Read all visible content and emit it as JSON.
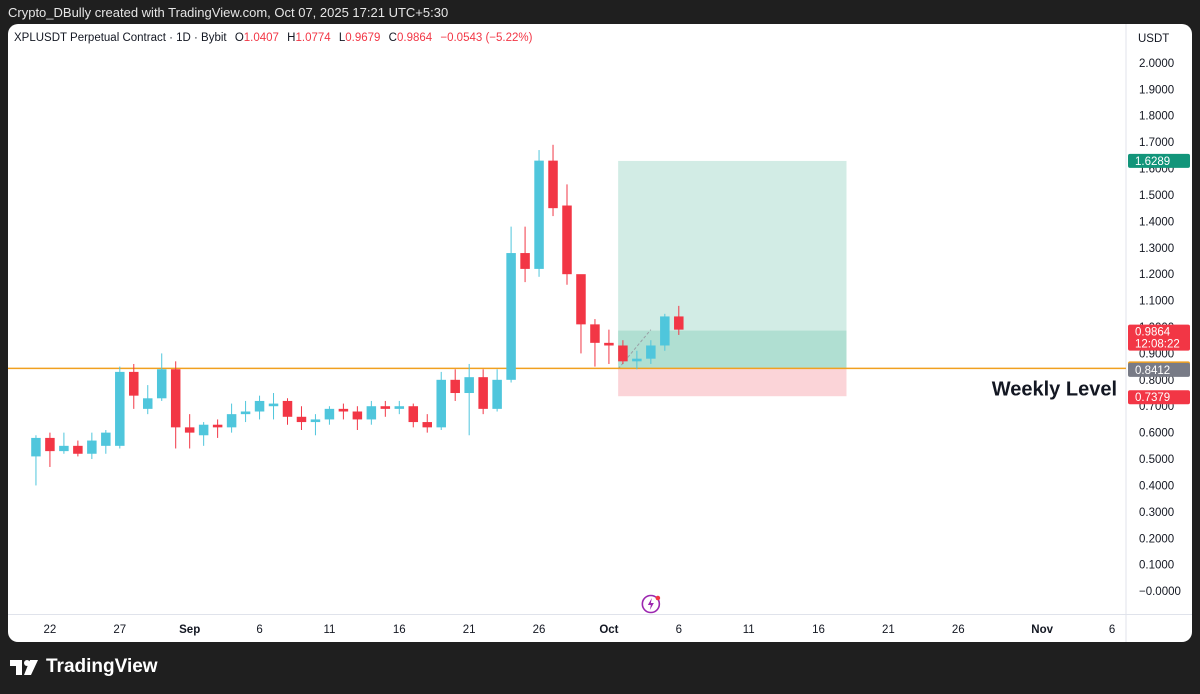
{
  "header": {
    "attribution": "Crypto_DBully created with TradingView.com, Oct 07, 2025 17:21 UTC+5:30"
  },
  "legend": {
    "symbol": "XPLUSDT Perpetual Contract · 1D · Bybit",
    "o_label": "O",
    "o_value": "1.0407",
    "h_label": "H",
    "h_value": "1.0774",
    "l_label": "L",
    "l_value": "0.9679",
    "c_label": "C",
    "c_value": "0.9864",
    "change": "−0.0543 (−5.22%)"
  },
  "footer": {
    "brand": "TradingView"
  },
  "colors": {
    "up": "#4fc6dc",
    "down": "#f23645",
    "level": "#f0a020",
    "target_zone": "#cdeae2",
    "stop_zone": "#fbd4d8",
    "tp_label": "#12957a",
    "entry_label": "#787b86",
    "background": "#ffffff"
  },
  "chart_data": {
    "type": "candlestick",
    "currency_label": "USDT",
    "ylim": [
      -0.03,
      2.03
    ],
    "y_ticks": [
      "2.0000",
      "1.9000",
      "1.8000",
      "1.7000",
      "1.6000",
      "1.5000",
      "1.4000",
      "1.3000",
      "1.2000",
      "1.1000",
      "1.0000",
      "0.9000",
      "0.8000",
      "0.7000",
      "0.6000",
      "0.5000",
      "0.4000",
      "0.3000",
      "0.2000",
      "0.1000",
      "−0.0000"
    ],
    "x_ticks": [
      {
        "label": "22",
        "date": "2025-08-22",
        "bold": false
      },
      {
        "label": "27",
        "date": "2025-08-27",
        "bold": false
      },
      {
        "label": "Sep",
        "date": "2025-09-01",
        "bold": true
      },
      {
        "label": "6",
        "date": "2025-09-06",
        "bold": false
      },
      {
        "label": "11",
        "date": "2025-09-11",
        "bold": false
      },
      {
        "label": "16",
        "date": "2025-09-16",
        "bold": false
      },
      {
        "label": "21",
        "date": "2025-09-21",
        "bold": false
      },
      {
        "label": "26",
        "date": "2025-09-26",
        "bold": false
      },
      {
        "label": "Oct",
        "date": "2025-10-01",
        "bold": true
      },
      {
        "label": "6",
        "date": "2025-10-06",
        "bold": false
      },
      {
        "label": "11",
        "date": "2025-10-11",
        "bold": false
      },
      {
        "label": "16",
        "date": "2025-10-16",
        "bold": false
      },
      {
        "label": "21",
        "date": "2025-10-21",
        "bold": false
      },
      {
        "label": "26",
        "date": "2025-10-26",
        "bold": false
      },
      {
        "label": "Nov",
        "date": "2025-11-01",
        "bold": true
      },
      {
        "label": "6",
        "date": "2025-11-06",
        "bold": false
      }
    ],
    "x_range": [
      "2025-08-19",
      "2025-11-07"
    ],
    "candles": [
      {
        "date": "2025-08-21",
        "o": 0.51,
        "h": 0.59,
        "l": 0.4,
        "c": 0.58
      },
      {
        "date": "2025-08-22",
        "o": 0.58,
        "h": 0.6,
        "l": 0.47,
        "c": 0.53
      },
      {
        "date": "2025-08-23",
        "o": 0.53,
        "h": 0.6,
        "l": 0.52,
        "c": 0.55
      },
      {
        "date": "2025-08-24",
        "o": 0.55,
        "h": 0.57,
        "l": 0.51,
        "c": 0.52
      },
      {
        "date": "2025-08-25",
        "o": 0.52,
        "h": 0.6,
        "l": 0.5,
        "c": 0.57
      },
      {
        "date": "2025-08-26",
        "o": 0.55,
        "h": 0.61,
        "l": 0.52,
        "c": 0.6
      },
      {
        "date": "2025-08-27",
        "o": 0.55,
        "h": 0.85,
        "l": 0.54,
        "c": 0.83
      },
      {
        "date": "2025-08-28",
        "o": 0.83,
        "h": 0.86,
        "l": 0.69,
        "c": 0.74
      },
      {
        "date": "2025-08-29",
        "o": 0.69,
        "h": 0.78,
        "l": 0.67,
        "c": 0.73
      },
      {
        "date": "2025-08-30",
        "o": 0.73,
        "h": 0.9,
        "l": 0.72,
        "c": 0.84
      },
      {
        "date": "2025-08-31",
        "o": 0.84,
        "h": 0.87,
        "l": 0.54,
        "c": 0.62
      },
      {
        "date": "2025-09-01",
        "o": 0.62,
        "h": 0.67,
        "l": 0.54,
        "c": 0.6
      },
      {
        "date": "2025-09-02",
        "o": 0.59,
        "h": 0.64,
        "l": 0.55,
        "c": 0.63
      },
      {
        "date": "2025-09-03",
        "o": 0.63,
        "h": 0.65,
        "l": 0.58,
        "c": 0.62
      },
      {
        "date": "2025-09-04",
        "o": 0.62,
        "h": 0.71,
        "l": 0.6,
        "c": 0.67
      },
      {
        "date": "2025-09-05",
        "o": 0.67,
        "h": 0.72,
        "l": 0.64,
        "c": 0.68
      },
      {
        "date": "2025-09-06",
        "o": 0.68,
        "h": 0.74,
        "l": 0.65,
        "c": 0.72
      },
      {
        "date": "2025-09-07",
        "o": 0.7,
        "h": 0.75,
        "l": 0.65,
        "c": 0.71
      },
      {
        "date": "2025-09-08",
        "o": 0.72,
        "h": 0.73,
        "l": 0.63,
        "c": 0.66
      },
      {
        "date": "2025-09-09",
        "o": 0.66,
        "h": 0.7,
        "l": 0.61,
        "c": 0.64
      },
      {
        "date": "2025-09-10",
        "o": 0.64,
        "h": 0.67,
        "l": 0.59,
        "c": 0.65
      },
      {
        "date": "2025-09-11",
        "o": 0.65,
        "h": 0.7,
        "l": 0.63,
        "c": 0.69
      },
      {
        "date": "2025-09-12",
        "o": 0.69,
        "h": 0.71,
        "l": 0.65,
        "c": 0.68
      },
      {
        "date": "2025-09-13",
        "o": 0.68,
        "h": 0.7,
        "l": 0.61,
        "c": 0.65
      },
      {
        "date": "2025-09-14",
        "o": 0.65,
        "h": 0.72,
        "l": 0.63,
        "c": 0.7
      },
      {
        "date": "2025-09-15",
        "o": 0.7,
        "h": 0.72,
        "l": 0.66,
        "c": 0.69
      },
      {
        "date": "2025-09-16",
        "o": 0.69,
        "h": 0.72,
        "l": 0.67,
        "c": 0.7
      },
      {
        "date": "2025-09-17",
        "o": 0.7,
        "h": 0.71,
        "l": 0.62,
        "c": 0.64
      },
      {
        "date": "2025-09-18",
        "o": 0.64,
        "h": 0.67,
        "l": 0.6,
        "c": 0.62
      },
      {
        "date": "2025-09-19",
        "o": 0.62,
        "h": 0.83,
        "l": 0.61,
        "c": 0.8
      },
      {
        "date": "2025-09-20",
        "o": 0.8,
        "h": 0.84,
        "l": 0.72,
        "c": 0.75
      },
      {
        "date": "2025-09-21",
        "o": 0.75,
        "h": 0.86,
        "l": 0.59,
        "c": 0.81
      },
      {
        "date": "2025-09-22",
        "o": 0.81,
        "h": 0.84,
        "l": 0.67,
        "c": 0.69
      },
      {
        "date": "2025-09-23",
        "o": 0.69,
        "h": 0.84,
        "l": 0.68,
        "c": 0.8
      },
      {
        "date": "2025-09-24",
        "o": 0.8,
        "h": 1.38,
        "l": 0.79,
        "c": 1.28
      },
      {
        "date": "2025-09-25",
        "o": 1.28,
        "h": 1.38,
        "l": 1.17,
        "c": 1.22
      },
      {
        "date": "2025-09-26",
        "o": 1.22,
        "h": 1.67,
        "l": 1.19,
        "c": 1.63
      },
      {
        "date": "2025-09-27",
        "o": 1.63,
        "h": 1.69,
        "l": 1.42,
        "c": 1.45
      },
      {
        "date": "2025-09-28",
        "o": 1.46,
        "h": 1.54,
        "l": 1.16,
        "c": 1.2
      },
      {
        "date": "2025-09-29",
        "o": 1.2,
        "h": 1.18,
        "l": 0.9,
        "c": 1.01
      },
      {
        "date": "2025-09-30",
        "o": 1.01,
        "h": 1.03,
        "l": 0.85,
        "c": 0.94
      },
      {
        "date": "2025-10-01",
        "o": 0.94,
        "h": 0.99,
        "l": 0.86,
        "c": 0.93
      },
      {
        "date": "2025-10-02",
        "o": 0.93,
        "h": 0.95,
        "l": 0.86,
        "c": 0.87
      },
      {
        "date": "2025-10-03",
        "o": 0.87,
        "h": 0.91,
        "l": 0.84,
        "c": 0.88
      },
      {
        "date": "2025-10-04",
        "o": 0.88,
        "h": 0.95,
        "l": 0.86,
        "c": 0.93
      },
      {
        "date": "2025-10-05",
        "o": 0.93,
        "h": 1.05,
        "l": 0.91,
        "c": 1.04
      },
      {
        "date": "2025-10-06",
        "o": 1.04,
        "h": 1.08,
        "l": 0.97,
        "c": 0.99
      }
    ],
    "horizontal_levels": [
      {
        "name": "Weekly Level",
        "value": 0.8431,
        "label": "0.8431"
      }
    ],
    "annotations": [
      {
        "text": "Weekly Level"
      }
    ],
    "position_tool": {
      "start_date": "2025-10-02",
      "end_date": "2025-10-18",
      "take_profit": 1.6289,
      "entry": 0.8412,
      "stop": 0.7379,
      "current": 0.9864
    },
    "price_labels": [
      {
        "key": "tp",
        "value": 1.6289,
        "text": "1.6289"
      },
      {
        "key": "last",
        "value": 0.9864,
        "text": "0.9864",
        "sub": "12:08:22"
      },
      {
        "key": "level",
        "value": 0.8431,
        "text": "0.8431"
      },
      {
        "key": "entry",
        "value": 0.8412,
        "text": "0.8412"
      },
      {
        "key": "stop",
        "value": 0.7379,
        "text": "0.7379"
      }
    ]
  }
}
